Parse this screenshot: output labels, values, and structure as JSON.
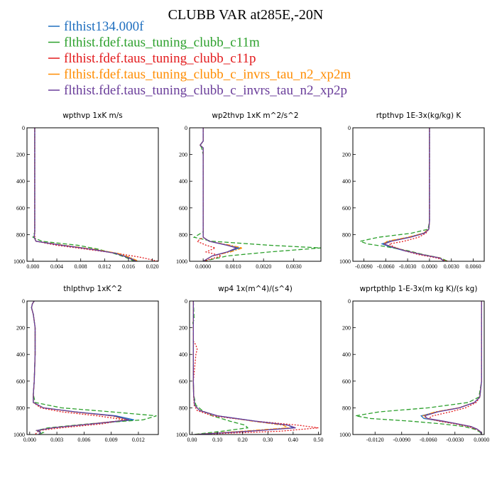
{
  "title": "CLUBB VAR at285E,-20N",
  "colors": {
    "flthist134.000f": "#1f6fbf",
    "c11m": "#2ca02c",
    "c11p": "#e31a1c",
    "xp2m": "#ff8c00",
    "xp2p": "#6a3d9a"
  },
  "legend": [
    {
      "label": "flthist134.000f",
      "color": "#1f6fbf",
      "dash": ""
    },
    {
      "label": "flthist.fdef.taus_tuning_clubb_c11m",
      "color": "#2ca02c",
      "dash": "6,3"
    },
    {
      "label": "flthist.fdef.taus_tuning_clubb_c11p",
      "color": "#e31a1c",
      "dash": "2,2"
    },
    {
      "label": "flthist.fdef.taus_tuning_clubb_c_invrs_tau_n2_xp2m",
      "color": "#ff8c00",
      "dash": "6,2,2,2"
    },
    {
      "label": "flthist.fdef.taus_tuning_clubb_c_invrs_tau_n2_xp2p",
      "color": "#6a3d9a",
      "dash": ""
    }
  ],
  "chart_data": [
    {
      "type": "line",
      "title": "wpthvp 1xK m/s",
      "xlim": [
        -0.001,
        0.021
      ],
      "ylim": [
        0,
        1000
      ],
      "y_inverted": true,
      "xticks": [
        0.0,
        0.004,
        0.008,
        0.012,
        0.016,
        0.02
      ],
      "xtick_labels": [
        "0.000",
        "0.004",
        "0.008",
        "0.012",
        "0.016",
        "0.020"
      ],
      "yticks": [
        0,
        200,
        400,
        600,
        800,
        1000
      ],
      "y": [
        0,
        100,
        200,
        300,
        400,
        500,
        600,
        700,
        780,
        820,
        850,
        880,
        910,
        940,
        970,
        1000
      ],
      "series": [
        {
          "key": "flthist134.000f",
          "x": [
            0.0003,
            0.0003,
            0.0003,
            0.0003,
            0.0003,
            0.0003,
            0.0003,
            0.0003,
            0.0003,
            0.0002,
            0.0005,
            0.005,
            0.01,
            0.014,
            0.016,
            0.0175
          ]
        },
        {
          "key": "c11m",
          "x": [
            0.0003,
            0.0003,
            0.0003,
            0.0003,
            0.0003,
            0.0003,
            0.0003,
            0.0003,
            0.0003,
            0.0,
            0.0015,
            0.0075,
            0.011,
            0.0135,
            0.0155,
            0.017
          ]
        },
        {
          "key": "c11p",
          "x": [
            0.0003,
            0.0003,
            0.0003,
            0.0003,
            0.0003,
            0.0003,
            0.0003,
            0.0003,
            0.0003,
            0.0003,
            0.0005,
            0.004,
            0.009,
            0.014,
            0.018,
            0.021
          ]
        },
        {
          "key": "xp2m",
          "x": [
            0.0003,
            0.0003,
            0.0003,
            0.0003,
            0.0003,
            0.0003,
            0.0003,
            0.0003,
            0.0003,
            0.0002,
            0.0005,
            0.0052,
            0.0102,
            0.0142,
            0.0162,
            0.0177
          ]
        },
        {
          "key": "xp2p",
          "x": [
            0.0003,
            0.0003,
            0.0003,
            0.0003,
            0.0003,
            0.0003,
            0.0003,
            0.0003,
            0.0003,
            0.0002,
            0.0005,
            0.0048,
            0.0098,
            0.0138,
            0.0158,
            0.0173
          ]
        }
      ]
    },
    {
      "type": "line",
      "title": "wp2thvp 1xK m^2/s^2",
      "xlim": [
        -0.00045,
        0.0039
      ],
      "ylim": [
        0,
        1000
      ],
      "y_inverted": true,
      "xticks": [
        0.0,
        0.001,
        0.002,
        0.003
      ],
      "xtick_labels": [
        "0.0000",
        "0.0010",
        "0.0020",
        "0.0030"
      ],
      "yticks": [
        0,
        200,
        400,
        600,
        800,
        1000
      ],
      "y": [
        0,
        100,
        130,
        150,
        200,
        400,
        600,
        780,
        820,
        850,
        880,
        900,
        930,
        960,
        1000
      ],
      "series": [
        {
          "key": "flthist134.000f",
          "x": [
            0.0,
            0.0,
            -0.0001,
            0.0,
            0.0,
            0.0,
            0.0,
            0.0,
            0.0,
            0.0002,
            0.0008,
            0.0012,
            0.0008,
            0.0003,
            0.0
          ]
        },
        {
          "key": "c11m",
          "x": [
            0.0,
            0.0,
            -0.0001,
            -5e-05,
            0.0,
            0.0,
            0.0,
            0.0,
            -0.0003,
            0.0003,
            0.0022,
            0.0039,
            0.0022,
            0.0008,
            0.0
          ]
        },
        {
          "key": "c11p",
          "x": [
            0.0,
            0.0,
            -0.0001,
            0.0,
            0.0,
            0.0,
            0.0,
            0.0,
            0.0,
            -0.0002,
            0.0001,
            0.0004,
            0.0001,
            0.0006,
            0.0
          ]
        },
        {
          "key": "xp2m",
          "x": [
            0.0,
            0.0,
            -0.0001,
            0.0,
            0.0,
            0.0,
            0.0,
            0.0,
            0.0,
            0.0002,
            0.0009,
            0.0013,
            0.0009,
            0.0003,
            0.0
          ]
        },
        {
          "key": "xp2p",
          "x": [
            0.0,
            0.0,
            -0.0001,
            0.0,
            0.0,
            0.0,
            0.0,
            0.0,
            0.0,
            0.0002,
            0.0008,
            0.0011,
            0.0008,
            0.0003,
            0.0
          ]
        }
      ]
    },
    {
      "type": "line",
      "title": "rtpthvp 1E-3x(kg/kg) K",
      "xlim": [
        -0.0105,
        0.0075
      ],
      "ylim": [
        0,
        1000
      ],
      "y_inverted": true,
      "xticks": [
        -0.009,
        -0.006,
        -0.003,
        0.0,
        0.003,
        0.006
      ],
      "xtick_labels": [
        "-0.0090",
        "-0.0060",
        "-0.0030",
        "0.0000",
        "0.0030",
        "0.0060"
      ],
      "yticks": [
        0,
        200,
        400,
        600,
        800,
        1000
      ],
      "y": [
        0,
        200,
        400,
        600,
        700,
        760,
        790,
        820,
        850,
        870,
        890,
        920,
        950,
        975,
        1000
      ],
      "series": [
        {
          "key": "flthist134.000f",
          "x": [
            0.0,
            0.0,
            0.0,
            0.0,
            0.0,
            -0.0001,
            -0.0008,
            -0.0028,
            -0.0055,
            -0.0065,
            -0.0055,
            -0.0035,
            -0.001,
            0.0015,
            0.002
          ]
        },
        {
          "key": "c11m",
          "x": [
            0.0,
            0.0,
            0.0,
            0.0,
            0.0,
            -0.0002,
            -0.0025,
            -0.007,
            -0.0095,
            -0.0085,
            -0.006,
            -0.003,
            -0.0008,
            0.0015,
            0.0025
          ]
        },
        {
          "key": "c11p",
          "x": [
            0.0,
            0.0,
            0.0,
            0.0,
            0.0,
            -0.0001,
            -0.0005,
            -0.0015,
            -0.0035,
            -0.0055,
            -0.005,
            -0.0035,
            -0.0015,
            0.001,
            0.0025
          ]
        },
        {
          "key": "xp2m",
          "x": [
            0.0,
            0.0,
            0.0,
            0.0,
            0.0,
            -0.0001,
            -0.0009,
            -0.003,
            -0.0058,
            -0.0063,
            -0.0052,
            -0.0033,
            -0.001,
            0.0015,
            0.002
          ]
        },
        {
          "key": "xp2p",
          "x": [
            0.0,
            0.0,
            0.0,
            0.0,
            0.0,
            -0.0001,
            -0.0007,
            -0.0026,
            -0.0052,
            -0.0062,
            -0.0053,
            -0.0034,
            -0.001,
            0.0014,
            0.002
          ]
        }
      ]
    },
    {
      "type": "line",
      "title": "thlpthvp 1xK^2",
      "xlim": [
        -0.0003,
        0.0142
      ],
      "ylim": [
        0,
        1000
      ],
      "y_inverted": true,
      "xticks": [
        0.0,
        0.003,
        0.006,
        0.009,
        0.012
      ],
      "xtick_labels": [
        "0.000",
        "0.003",
        "0.006",
        "0.009",
        "0.012"
      ],
      "yticks": [
        0,
        200,
        400,
        600,
        800,
        1000
      ],
      "y": [
        0,
        20,
        50,
        100,
        200,
        400,
        600,
        700,
        760,
        800,
        830,
        860,
        890,
        920,
        950,
        970,
        985,
        1000
      ],
      "series": [
        {
          "key": "flthist134.000f",
          "x": [
            0.0005,
            0.0003,
            0.0002,
            0.0004,
            0.0006,
            0.0006,
            0.0005,
            0.0004,
            0.0004,
            0.0015,
            0.005,
            0.0095,
            0.0115,
            0.007,
            0.0025,
            0.0008,
            0.0012,
            0.001
          ]
        },
        {
          "key": "c11m",
          "x": [
            0.0005,
            0.0003,
            0.0002,
            0.0004,
            0.0006,
            0.0006,
            0.0005,
            0.0004,
            0.0006,
            0.0035,
            0.009,
            0.014,
            0.0125,
            0.0065,
            0.002,
            0.0008,
            0.0015,
            0.001
          ]
        },
        {
          "key": "c11p",
          "x": [
            0.0005,
            0.0003,
            0.0002,
            0.0004,
            0.0006,
            0.0006,
            0.0005,
            0.0004,
            0.0004,
            0.0012,
            0.0035,
            0.0075,
            0.0105,
            0.008,
            0.0035,
            0.001,
            0.0008,
            0.0006
          ]
        },
        {
          "key": "xp2m",
          "x": [
            0.0005,
            0.0003,
            0.0002,
            0.0004,
            0.0006,
            0.0006,
            0.0005,
            0.0004,
            0.0004,
            0.0015,
            0.0048,
            0.009,
            0.0108,
            0.0068,
            0.0025,
            0.0008,
            0.0012,
            0.001
          ]
        },
        {
          "key": "xp2p",
          "x": [
            0.0005,
            0.0003,
            0.0002,
            0.0004,
            0.0006,
            0.0006,
            0.0005,
            0.0004,
            0.0004,
            0.0015,
            0.0049,
            0.0092,
            0.011,
            0.0069,
            0.0025,
            0.0008,
            0.0012,
            0.001
          ]
        }
      ]
    },
    {
      "type": "line",
      "title": "wp4 1x(m^4)/(s^4)",
      "xlim": [
        -0.01,
        0.51
      ],
      "ylim": [
        0,
        1000
      ],
      "y_inverted": true,
      "xticks": [
        0.0,
        0.1,
        0.2,
        0.3,
        0.4,
        0.5
      ],
      "xtick_labels": [
        "0.00",
        "0.10",
        "0.20",
        "0.30",
        "0.40",
        "0.50"
      ],
      "yticks": [
        0,
        200,
        400,
        600,
        800,
        1000
      ],
      "y": [
        0,
        140,
        160,
        200,
        300,
        330,
        360,
        400,
        600,
        700,
        780,
        820,
        860,
        900,
        930,
        950,
        975,
        1000
      ],
      "series": [
        {
          "key": "flthist134.000f",
          "x": [
            0.005,
            0.005,
            0.005,
            0.005,
            0.005,
            0.005,
            0.005,
            0.005,
            0.005,
            0.006,
            0.01,
            0.03,
            0.1,
            0.25,
            0.38,
            0.4,
            0.22,
            0.01
          ]
        },
        {
          "key": "c11m",
          "x": [
            0.005,
            0.008,
            0.003,
            0.005,
            0.005,
            0.005,
            0.005,
            0.005,
            0.005,
            0.006,
            0.015,
            0.04,
            0.08,
            0.15,
            0.21,
            0.22,
            0.12,
            0.005
          ]
        },
        {
          "key": "c11p",
          "x": [
            0.005,
            0.005,
            0.005,
            0.005,
            0.005,
            0.015,
            0.02,
            0.015,
            0.005,
            0.006,
            0.008,
            0.02,
            0.08,
            0.25,
            0.42,
            0.5,
            0.35,
            0.01
          ]
        },
        {
          "key": "xp2m",
          "x": [
            0.005,
            0.005,
            0.005,
            0.005,
            0.005,
            0.005,
            0.005,
            0.005,
            0.005,
            0.006,
            0.01,
            0.03,
            0.1,
            0.24,
            0.36,
            0.38,
            0.2,
            0.01
          ]
        },
        {
          "key": "xp2p",
          "x": [
            0.005,
            0.005,
            0.005,
            0.005,
            0.005,
            0.005,
            0.005,
            0.005,
            0.005,
            0.006,
            0.01,
            0.03,
            0.1,
            0.25,
            0.38,
            0.41,
            0.23,
            0.01
          ]
        }
      ]
    },
    {
      "type": "line",
      "title": "wprtpthlp 1-E-3x(m kg K)/(s kg)",
      "xlim": [
        -0.0145,
        0.0003
      ],
      "ylim": [
        0,
        1000
      ],
      "y_inverted": true,
      "xticks": [
        -0.012,
        -0.009,
        -0.006,
        -0.003,
        0.0
      ],
      "xtick_labels": [
        "-0.0120",
        "-0.0090",
        "-0.0060",
        "-0.0030",
        "0.0000"
      ],
      "yticks": [
        0,
        200,
        400,
        600,
        800,
        1000
      ],
      "y": [
        0,
        200,
        400,
        600,
        720,
        760,
        800,
        830,
        860,
        880,
        900,
        920,
        940,
        960,
        980,
        1000
      ],
      "series": [
        {
          "key": "flthist134.000f",
          "x": [
            0.0,
            0.0,
            0.0,
            0.0,
            -0.0002,
            -0.0008,
            -0.0025,
            -0.005,
            -0.0068,
            -0.0065,
            -0.0045,
            -0.0028,
            -0.0012,
            -0.0005,
            -0.0001,
            0.0
          ]
        },
        {
          "key": "c11m",
          "x": [
            0.0,
            0.0,
            0.0,
            0.0,
            -0.0003,
            -0.0015,
            -0.006,
            -0.0115,
            -0.0142,
            -0.0125,
            -0.008,
            -0.0045,
            -0.002,
            -0.0008,
            -0.0002,
            0.0
          ]
        },
        {
          "key": "c11p",
          "x": [
            0.0,
            0.0,
            0.0,
            0.0,
            -0.0002,
            -0.0006,
            -0.0018,
            -0.0035,
            -0.0055,
            -0.006,
            -0.0048,
            -0.003,
            -0.0015,
            -0.0006,
            -0.0001,
            0.0
          ]
        },
        {
          "key": "xp2m",
          "x": [
            0.0,
            0.0,
            0.0,
            0.0,
            -0.0002,
            -0.0008,
            -0.0026,
            -0.0052,
            -0.0066,
            -0.0062,
            -0.0044,
            -0.0027,
            -0.0012,
            -0.0005,
            -0.0001,
            0.0
          ]
        },
        {
          "key": "xp2p",
          "x": [
            0.0,
            0.0,
            0.0,
            0.0,
            -0.0002,
            -0.0008,
            -0.0025,
            -0.0049,
            -0.0064,
            -0.0061,
            -0.0043,
            -0.0027,
            -0.0012,
            -0.0005,
            -0.0001,
            0.0
          ]
        }
      ]
    }
  ]
}
